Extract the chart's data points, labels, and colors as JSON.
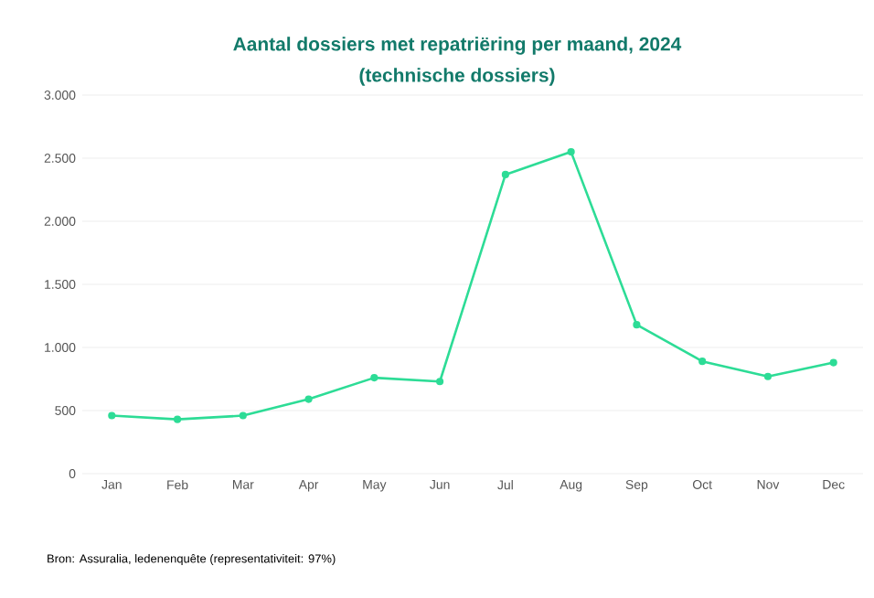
{
  "chart_data": {
    "type": "line",
    "title": "Aantal dossiers met repatriëring per maand, 2024",
    "subtitle": "(technische dossiers)",
    "categories": [
      "Jan",
      "Feb",
      "Mar",
      "Apr",
      "May",
      "Jun",
      "Jul",
      "Aug",
      "Sep",
      "Oct",
      "Nov",
      "Dec"
    ],
    "series": [
      {
        "color": "#2ddc96",
        "values": [
          460,
          430,
          460,
          590,
          760,
          730,
          2370,
          2550,
          1180,
          890,
          770,
          880
        ]
      }
    ],
    "ylim": [
      0,
      3000
    ],
    "yticks": [
      0,
      {
        "value": 500,
        "label": "500"
      },
      {
        "value": 1000,
        "label": "1.000"
      },
      {
        "value": 1500,
        "label": "1.500"
      },
      {
        "value": 2000,
        "label": "2.000"
      },
      {
        "value": 2500,
        "label": "2.500"
      },
      {
        "value": 3000,
        "label": "3.000"
      }
    ],
    "grid": "y",
    "marker": "circle",
    "line_style": "solid",
    "legend": false,
    "annotations": [
      "Bron: Assuralia, ledenenquête (representativiteit: 97%)"
    ]
  }
}
